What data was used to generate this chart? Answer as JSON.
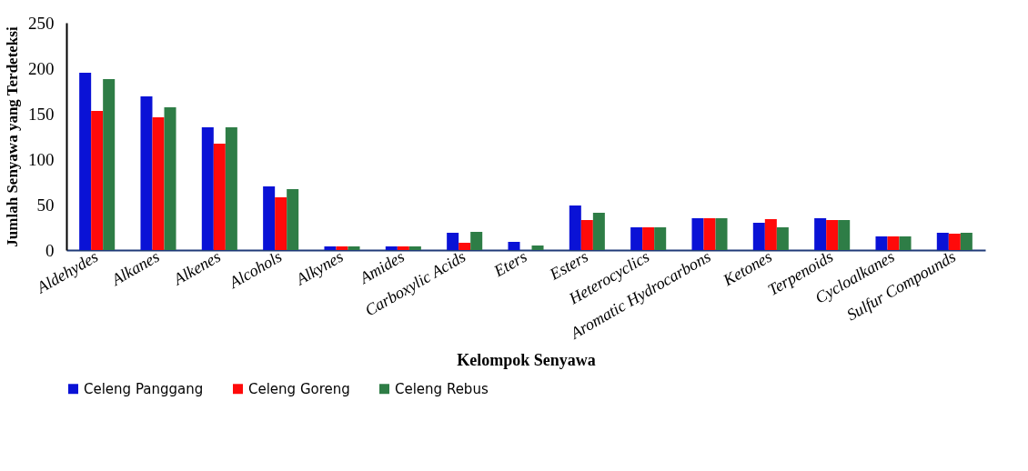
{
  "chart_data": {
    "type": "bar",
    "xlabel": "Kelompok Senyawa",
    "ylabel": "Jumlah Senyawa yang Terdeteksi",
    "categories": [
      "Aldehydes",
      "Alkanes",
      "Alkenes",
      "Alcohols",
      "Alkynes",
      "Amides",
      "Carboxylic Acids",
      "Eters",
      "Esters",
      "Heterocyclics",
      "Aromatic Hydrocarbons",
      "Ketones",
      "Terpenoids",
      "Cycloalkanes",
      "Sulfur Compounds"
    ],
    "series": [
      {
        "name": "Celeng Panggang",
        "color": "#0a12d6",
        "values": [
          195,
          169,
          135,
          70,
          4,
          4,
          19,
          9,
          49,
          25,
          35,
          30,
          35,
          15,
          19
        ]
      },
      {
        "name": "Celeng Goreng",
        "color": "#ff0a0a",
        "values": [
          153,
          146,
          117,
          58,
          4,
          4,
          8,
          0,
          33,
          25,
          35,
          34,
          33,
          15,
          18
        ]
      },
      {
        "name": "Celeng Rebus",
        "color": "#2e7d46",
        "values": [
          188,
          157,
          135,
          67,
          4,
          4,
          20,
          5,
          41,
          25,
          35,
          25,
          33,
          15,
          19
        ]
      }
    ],
    "ylim": [
      0,
      250
    ],
    "yticks": [
      0,
      50,
      100,
      150,
      200,
      250
    ],
    "grid": false,
    "legend": "bottom"
  }
}
